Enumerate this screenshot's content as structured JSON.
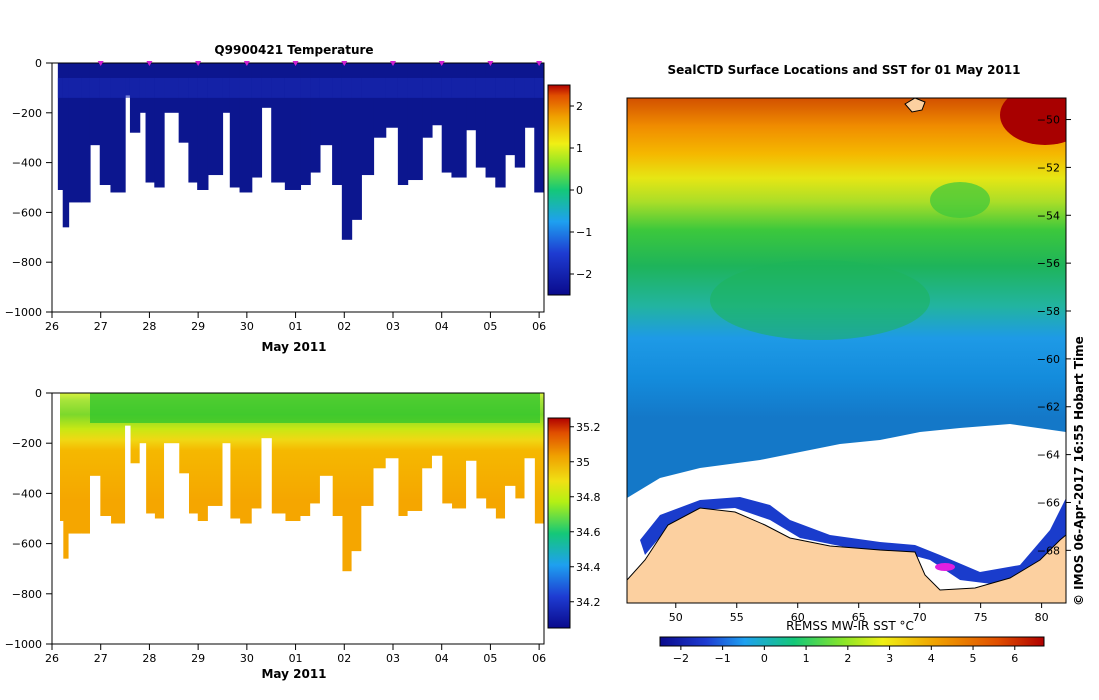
{
  "chart_data": [
    {
      "type": "heatmap",
      "title": "Q9900421  Temperature",
      "xlabel": "May 2011",
      "ylabel": "",
      "x_ticks": [
        "26",
        "27",
        "28",
        "29",
        "30",
        "01",
        "02",
        "03",
        "04",
        "05",
        "06"
      ],
      "x_range": [
        26,
        36.1
      ],
      "y_ticks": [
        "0",
        "−200",
        "−400",
        "−600",
        "−800",
        "−1000"
      ],
      "y_values": [
        0,
        -200,
        -400,
        -600,
        -800,
        -1000
      ],
      "ylim": [
        -1000,
        0
      ],
      "profile_markers_x": [
        27,
        28,
        29,
        30,
        31,
        32,
        33,
        34,
        35,
        36
      ],
      "profile_bottoms": [
        [
          26.12,
          26.22,
          -510
        ],
        [
          26.22,
          26.34,
          -660
        ],
        [
          26.34,
          26.6,
          -560
        ],
        [
          26.6,
          26.78,
          -560
        ],
        [
          26.78,
          26.98,
          -330
        ],
        [
          26.98,
          27.2,
          -490
        ],
        [
          27.2,
          27.5,
          -520
        ],
        [
          27.5,
          27.6,
          -130
        ],
        [
          27.6,
          27.8,
          -280
        ],
        [
          27.8,
          27.92,
          -200
        ],
        [
          27.92,
          28.1,
          -480
        ],
        [
          28.1,
          28.3,
          -500
        ],
        [
          28.3,
          28.6,
          -200
        ],
        [
          28.6,
          28.8,
          -320
        ],
        [
          28.8,
          28.98,
          -480
        ],
        [
          28.98,
          29.2,
          -510
        ],
        [
          29.2,
          29.5,
          -450
        ],
        [
          29.5,
          29.65,
          -200
        ],
        [
          29.65,
          29.85,
          -500
        ],
        [
          29.85,
          30.1,
          -520
        ],
        [
          30.1,
          30.3,
          -460
        ],
        [
          30.3,
          30.5,
          -180
        ],
        [
          30.5,
          30.78,
          -480
        ],
        [
          30.78,
          31.1,
          -510
        ],
        [
          31.1,
          31.3,
          -490
        ],
        [
          31.3,
          31.5,
          -440
        ],
        [
          31.5,
          31.75,
          -330
        ],
        [
          31.75,
          31.95,
          -490
        ],
        [
          31.95,
          32.15,
          -710
        ],
        [
          32.15,
          32.35,
          -630
        ],
        [
          32.35,
          32.6,
          -450
        ],
        [
          32.6,
          32.85,
          -300
        ],
        [
          32.85,
          33.1,
          -260
        ],
        [
          33.1,
          33.3,
          -490
        ],
        [
          33.3,
          33.6,
          -470
        ],
        [
          33.6,
          33.8,
          -300
        ],
        [
          33.8,
          34.0,
          -250
        ],
        [
          34.0,
          34.2,
          -440
        ],
        [
          34.2,
          34.5,
          -460
        ],
        [
          34.5,
          34.7,
          -270
        ],
        [
          34.7,
          34.9,
          -420
        ],
        [
          34.9,
          35.1,
          -460
        ],
        [
          35.1,
          35.3,
          -500
        ],
        [
          35.3,
          35.5,
          -370
        ],
        [
          35.5,
          35.7,
          -420
        ],
        [
          35.7,
          35.9,
          -260
        ],
        [
          35.9,
          36.1,
          -520
        ]
      ],
      "colorbar": {
        "ticks": [
          "2",
          "1",
          "0",
          "−1",
          "−2"
        ],
        "values": [
          2,
          1,
          0,
          -1,
          -2
        ],
        "range": [
          -2.5,
          2.5
        ]
      }
    },
    {
      "type": "heatmap",
      "title": "",
      "xlabel": "May 2011",
      "ylabel": "",
      "x_ticks": [
        "26",
        "27",
        "28",
        "29",
        "30",
        "01",
        "02",
        "03",
        "04",
        "05",
        "06"
      ],
      "x_range": [
        26,
        36.1
      ],
      "y_ticks": [
        "0",
        "−200",
        "−400",
        "−600",
        "−800",
        "−1000"
      ],
      "y_values": [
        0,
        -200,
        -400,
        -600,
        -800,
        -1000
      ],
      "ylim": [
        -1000,
        0
      ],
      "colorbar": {
        "ticks": [
          "35.2",
          "35",
          "34.8",
          "34.6",
          "34.4",
          "34.2"
        ],
        "values": [
          35.2,
          35.0,
          34.8,
          34.6,
          34.4,
          34.2
        ],
        "range": [
          34.05,
          35.25
        ]
      }
    },
    {
      "type": "heatmap",
      "title": "SealCTD Surface Locations and SST for 01 May 2011",
      "xlabel": "",
      "ylabel": "",
      "x_ticks": [
        "50",
        "55",
        "60",
        "65",
        "70",
        "75",
        "80"
      ],
      "x_values": [
        50,
        55,
        60,
        65,
        70,
        75,
        80
      ],
      "xlim": [
        46,
        82
      ],
      "y_ticks": [
        "−50",
        "−52",
        "−54",
        "−56",
        "−58",
        "−60",
        "−62",
        "−64",
        "−66",
        "−68"
      ],
      "y_values": [
        -50,
        -52,
        -54,
        -56,
        -58,
        -60,
        -62,
        -64,
        -66,
        -68
      ],
      "ylim": [
        -70.2,
        -49.1
      ],
      "colorbar": {
        "label": "REMSS MW-IR SST °C",
        "ticks": [
          "−2",
          "−1",
          "0",
          "1",
          "2",
          "3",
          "4",
          "5",
          "6"
        ],
        "values": [
          -2,
          -1,
          0,
          1,
          2,
          3,
          4,
          5,
          6
        ],
        "range": [
          -2.5,
          6.7
        ]
      },
      "credit": "©  IMOS 06-Apr-2017 16:55 Hobart Time"
    }
  ]
}
